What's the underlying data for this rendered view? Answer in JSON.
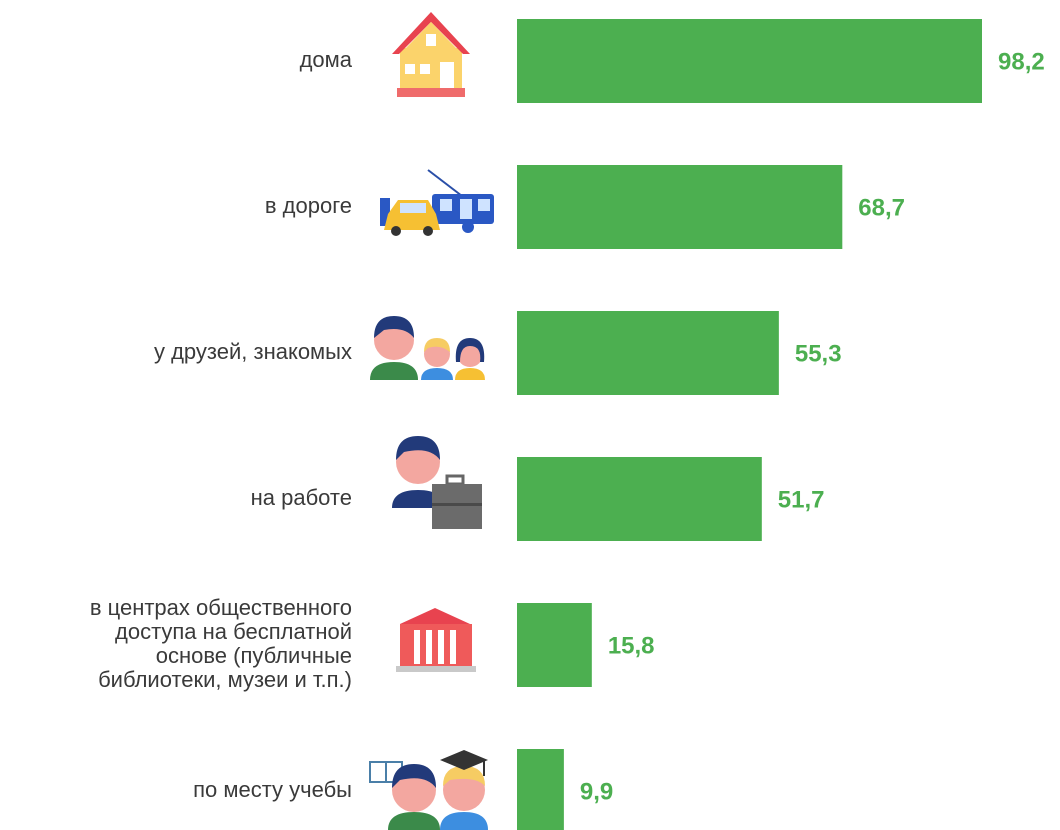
{
  "chart_data": {
    "type": "bar",
    "orientation": "horizontal",
    "categories": [
      "дома",
      "в дороге",
      "у друзей, знакомых",
      "на работе",
      "в центрах общественного\nдоступа на бесплатной\nоснове (публичные\nбиблиотеки, музеи и т.п.)",
      "по месту учебы"
    ],
    "values": [
      98.2,
      68.7,
      55.3,
      51.7,
      15.8,
      9.9
    ],
    "value_labels": [
      "98,2",
      "68,7",
      "55,3",
      "51,7",
      "15,8",
      "9,9"
    ],
    "color": "#4caf50"
  }
}
